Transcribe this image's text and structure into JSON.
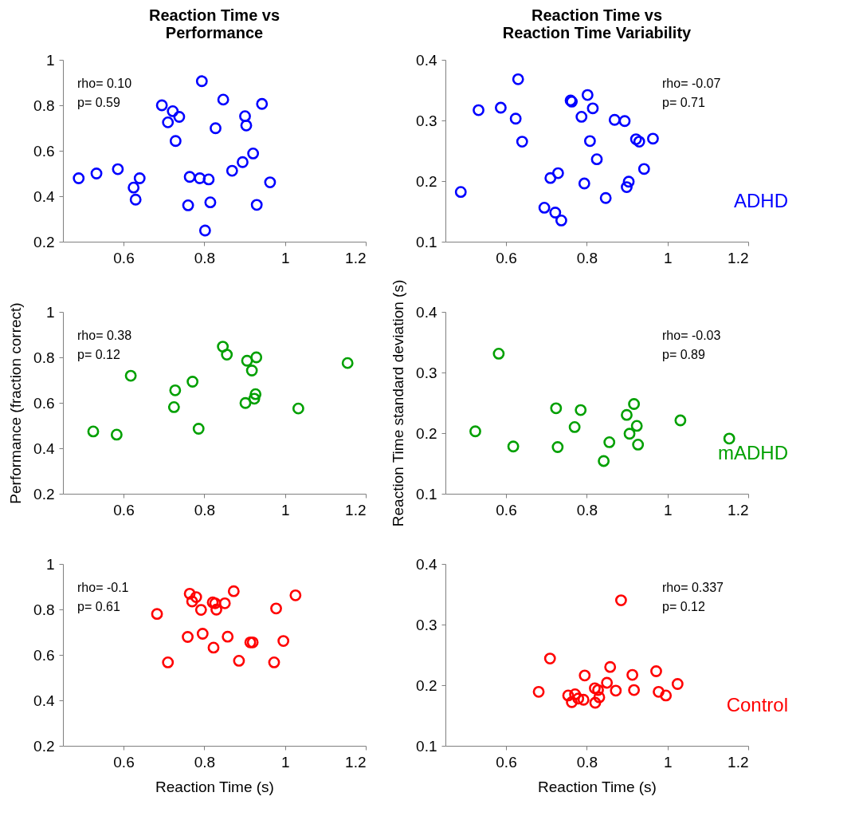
{
  "chart_data": [
    {
      "type": "scatter",
      "title": "Reaction Time vs\nPerformance",
      "marker": "circle",
      "xlim": [
        0.45,
        1.2
      ],
      "xticks": [
        0.6,
        0.8,
        1,
        1.2
      ],
      "ylim": [
        0.2,
        1
      ],
      "yticks": [
        0.2,
        0.4,
        0.6,
        0.8,
        1
      ],
      "annotations": [
        "rho= 0.10",
        "p= 0.59"
      ],
      "x": [
        0.489,
        0.533,
        0.586,
        0.625,
        0.64,
        0.63,
        0.695,
        0.722,
        0.71,
        0.738,
        0.729,
        0.794,
        0.847,
        0.828,
        0.901,
        0.904,
        0.943,
        0.921,
        0.895,
        0.869,
        0.963,
        0.93,
        0.764,
        0.789,
        0.811,
        0.76,
        0.815,
        0.802
      ],
      "series": [
        {
          "color": "#0000ff",
          "values": [
            0.479,
            0.5,
            0.519,
            0.438,
            0.479,
            0.385,
            0.8,
            0.774,
            0.725,
            0.749,
            0.643,
            0.906,
            0.825,
            0.699,
            0.752,
            0.711,
            0.806,
            0.588,
            0.55,
            0.512,
            0.461,
            0.362,
            0.485,
            0.479,
            0.474,
            0.36,
            0.373,
            0.249
          ]
        }
      ]
    },
    {
      "type": "scatter",
      "title": "Reaction Time vs\nReaction Time Variability",
      "marker": "circle",
      "xlim": [
        0.45,
        1.2
      ],
      "xticks": [
        0.6,
        0.8,
        1,
        1.2
      ],
      "ylim": [
        0.1,
        0.4
      ],
      "yticks": [
        0.1,
        0.2,
        0.3,
        0.4
      ],
      "annotations": [
        "rho= -0.07",
        "p= 0.71"
      ],
      "x": [
        0.488,
        0.532,
        0.587,
        0.624,
        0.63,
        0.64,
        0.695,
        0.71,
        0.722,
        0.729,
        0.737,
        0.76,
        0.763,
        0.802,
        0.787,
        0.815,
        0.808,
        0.825,
        0.794,
        0.847,
        0.869,
        0.894,
        0.922,
        0.93,
        0.964,
        0.942,
        0.904,
        0.899
      ],
      "series": [
        {
          "name": "ADHD",
          "color": "#0000ff",
          "values": [
            0.182,
            0.317,
            0.321,
            0.303,
            0.368,
            0.265,
            0.156,
            0.205,
            0.148,
            0.213,
            0.135,
            0.333,
            0.331,
            0.342,
            0.306,
            0.32,
            0.266,
            0.236,
            0.196,
            0.172,
            0.301,
            0.299,
            0.269,
            0.265,
            0.27,
            0.22,
            0.199,
            0.19
          ]
        }
      ]
    },
    {
      "type": "scatter",
      "ylabel": "Performance (fraction correct)",
      "marker": "circle",
      "xlim": [
        0.45,
        1.2
      ],
      "xticks": [
        0.6,
        0.8,
        1,
        1.2
      ],
      "ylim": [
        0.2,
        1
      ],
      "yticks": [
        0.2,
        0.4,
        0.6,
        0.8,
        1
      ],
      "annotations": [
        "rho= 0.38",
        "p= 0.12"
      ],
      "x": [
        0.525,
        0.583,
        0.618,
        0.728,
        0.725,
        0.771,
        0.786,
        0.846,
        0.856,
        0.906,
        0.929,
        0.918,
        0.927,
        0.924,
        0.902,
        1.033,
        1.155
      ],
      "series": [
        {
          "color": "#00a000",
          "values": [
            0.474,
            0.46,
            0.719,
            0.655,
            0.581,
            0.693,
            0.486,
            0.847,
            0.812,
            0.785,
            0.8,
            0.742,
            0.638,
            0.618,
            0.599,
            0.575,
            0.775
          ]
        }
      ]
    },
    {
      "type": "scatter",
      "ylabel": "Reaction Time standard deviation (s)",
      "marker": "circle",
      "xlim": [
        0.45,
        1.2
      ],
      "xticks": [
        0.6,
        0.8,
        1,
        1.2
      ],
      "ylim": [
        0.1,
        0.4
      ],
      "yticks": [
        0.1,
        0.2,
        0.3,
        0.4
      ],
      "annotations": [
        "rho= -0.03",
        "p= 0.89"
      ],
      "x": [
        0.524,
        0.582,
        0.618,
        0.724,
        0.728,
        0.77,
        0.785,
        0.842,
        0.856,
        0.899,
        0.917,
        0.906,
        0.924,
        0.927,
        1.032,
        1.153
      ],
      "series": [
        {
          "name": "mADHD",
          "color": "#00a000",
          "values": [
            0.203,
            0.331,
            0.178,
            0.241,
            0.177,
            0.21,
            0.238,
            0.154,
            0.185,
            0.23,
            0.248,
            0.199,
            0.212,
            0.181,
            0.221,
            0.191
          ]
        }
      ]
    },
    {
      "type": "scatter",
      "xlabel": "Reaction Time (s)",
      "marker": "circle",
      "xlim": [
        0.45,
        1.2
      ],
      "xticks": [
        0.6,
        0.8,
        1,
        1.2
      ],
      "ylim": [
        0.2,
        1
      ],
      "yticks": [
        0.2,
        0.4,
        0.6,
        0.8,
        1
      ],
      "annotations": [
        "rho= -0.1",
        "p= 0.61"
      ],
      "x": [
        0.683,
        0.71,
        0.764,
        0.78,
        0.77,
        0.792,
        0.759,
        0.796,
        0.823,
        0.827,
        0.83,
        0.851,
        0.873,
        0.858,
        0.886,
        0.914,
        0.92,
        0.973,
        0.978,
        0.996,
        1.026,
        0.821
      ],
      "series": [
        {
          "color": "#ff0000",
          "values": [
            0.78,
            0.567,
            0.869,
            0.854,
            0.835,
            0.798,
            0.679,
            0.693,
            0.632,
            0.827,
            0.799,
            0.827,
            0.88,
            0.68,
            0.574,
            0.655,
            0.655,
            0.567,
            0.804,
            0.661,
            0.862,
            0.831
          ]
        }
      ]
    },
    {
      "type": "scatter",
      "xlabel": "Reaction Time (s)",
      "marker": "circle",
      "xlim": [
        0.45,
        1.2
      ],
      "xticks": [
        0.6,
        0.8,
        1,
        1.2
      ],
      "ylim": [
        0.1,
        0.4
      ],
      "yticks": [
        0.1,
        0.2,
        0.3,
        0.4
      ],
      "annotations": [
        "rho= 0.337",
        "p= 0.12"
      ],
      "x": [
        0.681,
        0.709,
        0.754,
        0.771,
        0.763,
        0.779,
        0.792,
        0.795,
        0.82,
        0.828,
        0.821,
        0.831,
        0.85,
        0.858,
        0.872,
        0.885,
        0.913,
        0.917,
        0.972,
        0.978,
        0.996,
        1.025
      ],
      "series": [
        {
          "name": "Control",
          "color": "#ff0000",
          "values": [
            0.189,
            0.244,
            0.183,
            0.185,
            0.172,
            0.178,
            0.176,
            0.216,
            0.195,
            0.192,
            0.171,
            0.18,
            0.204,
            0.23,
            0.191,
            0.34,
            0.217,
            0.192,
            0.223,
            0.189,
            0.183,
            0.202
          ]
        }
      ]
    }
  ]
}
